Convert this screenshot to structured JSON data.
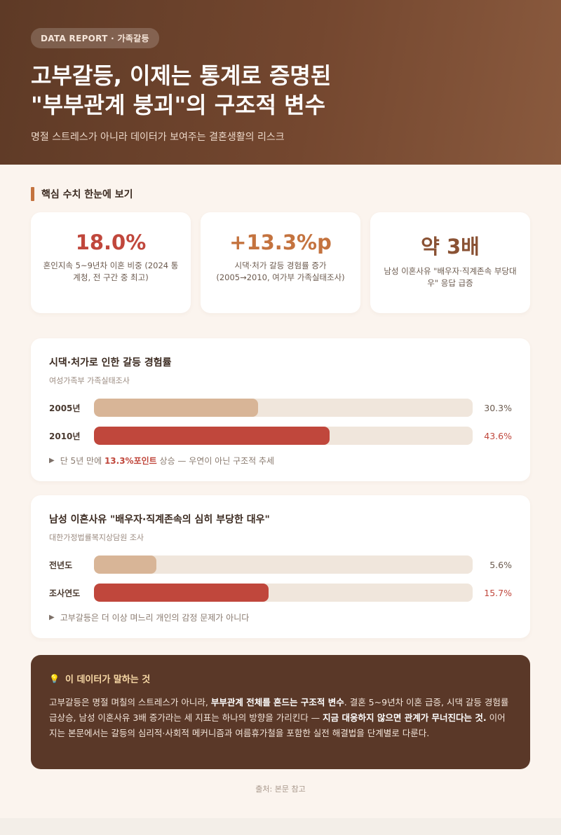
{
  "header": {
    "tag": "DATA REPORT · 가족갈등",
    "title_line1": "고부갈등, 이제는 통계로 증명된",
    "title_line2": "\"부부관계 붕괴\"의 구조적 변수",
    "subtitle": "명절 스트레스가 아니라 데이터가 보여주는 결혼생활의 리스크"
  },
  "section": {
    "title": "핵심 수치 한눈에 보기",
    "accent": "#c4733f"
  },
  "stats": [
    {
      "value": "18.0%",
      "desc": "혼인지속 5~9년차 이혼 비중 (2024 통계청, 전 구간 중 최고)",
      "color": "#c0473c"
    },
    {
      "value": "+13.3%p",
      "desc": "시댁·처가 갈등 경험률 증가 (2005→2010, 여가부 가족실태조사)",
      "color": "#c4733f"
    },
    {
      "value": "약 3배",
      "desc": "남성 이혼사유 \"배우자·직계존속 부당대우\" 응답 급증",
      "color": "#8a5234"
    }
  ],
  "chart1": {
    "title": "시댁·처가로 인한 갈등 경험률",
    "source": "여성가족부 가족실태조사",
    "rows": [
      {
        "label": "2005년",
        "value": 30.3,
        "display": "30.3%",
        "style": "light"
      },
      {
        "label": "2010년",
        "value": 43.6,
        "display": "43.6%",
        "style": "red"
      }
    ],
    "note_pre": "단 5년 만에 ",
    "note_bold": "13.3%포인트",
    "note_post": " 상승 — 우연이 아닌 구조적 추세"
  },
  "chart2": {
    "title": "남성 이혼사유 \"배우자·직계존속의 심히 부당한 대우\"",
    "source": "대한가정법률복지상담원 조사",
    "rows": [
      {
        "label": "전년도",
        "value": 5.6,
        "display": "5.6%",
        "style": "light"
      },
      {
        "label": "조사연도",
        "value": 15.7,
        "display": "15.7%",
        "style": "red"
      }
    ],
    "note": "고부갈등은 더 이상 며느리 개인의 감정 문제가 아니다"
  },
  "chart_data": [
    {
      "type": "bar",
      "title": "시댁·처가로 인한 갈등 경험률",
      "categories": [
        "2005년",
        "2010년"
      ],
      "values": [
        30.3,
        43.6
      ],
      "ylim": [
        0,
        70
      ]
    },
    {
      "type": "bar",
      "title": "남성 이혼사유 \"배우자·직계존속의 심히 부당한 대우\"",
      "categories": [
        "전년도",
        "조사연도"
      ],
      "values": [
        5.6,
        15.7
      ],
      "ylim": [
        0,
        34
      ]
    }
  ],
  "insight": {
    "icon": "lightbulb-icon",
    "title": "이 데이터가 말하는 것",
    "t1": "고부갈등은 명절 며칠의 스트레스가 아니라, ",
    "b1": "부부관계 전체를 흔드는 구조적 변수",
    "t2": ". 결혼 5~9년차 이혼 급증, 시댁 갈등 경험률 급상승, 남성 이혼사유 3배 증가라는 세 지표는 하나의 방향을 가리킨다 — ",
    "b2": "지금 대응하지 않으면 관계가 무너진다는 것.",
    "t3": " 이어지는 본문에서는 갈등의 심리적·사회적 메커니즘과 여름휴가철을 포함한 실전 해결법을 단계별로 다룬다."
  },
  "footer": {
    "source": "출처: 본문 참고"
  }
}
